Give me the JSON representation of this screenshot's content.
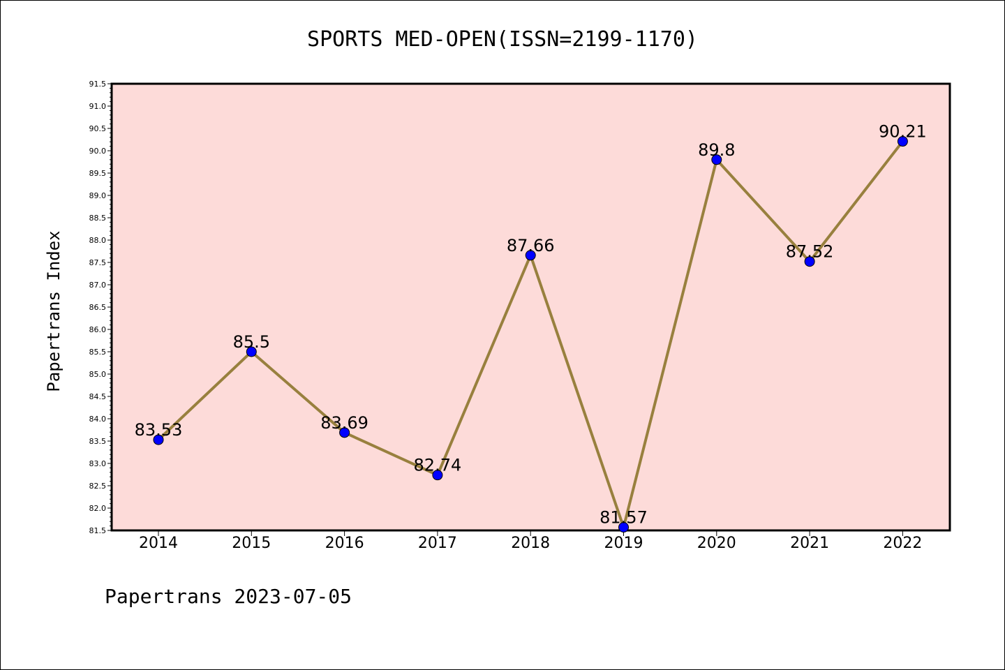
{
  "chart_data": {
    "type": "line",
    "title": "SPORTS MED-OPEN(ISSN=2199-1170)",
    "xlabel": "",
    "ylabel": "Papertrans Index",
    "categories": [
      "2014",
      "2015",
      "2016",
      "2017",
      "2018",
      "2019",
      "2020",
      "2021",
      "2022"
    ],
    "series": [
      {
        "values": [
          83.53,
          85.5,
          83.69,
          82.74,
          87.66,
          81.57,
          89.8,
          87.52,
          90.21
        ],
        "labels": [
          "83.53",
          "85.5",
          "83.69",
          "82.74",
          "87.66",
          "81.57",
          "89.8",
          "87.52",
          "90.21"
        ]
      }
    ],
    "ylim": [
      81.5,
      91.5
    ],
    "yticks": [
      "81.5",
      "82.0",
      "82.5",
      "83.0",
      "83.5",
      "84.0",
      "84.5",
      "85.0",
      "85.5",
      "86.0",
      "86.5",
      "87.0",
      "87.5",
      "88.0",
      "88.5",
      "89.0",
      "89.5",
      "90.0",
      "90.5",
      "91.0",
      "91.5"
    ],
    "grid": false,
    "legend": "none",
    "colors": {
      "plot_background": "#fddbd9",
      "line": "#98803e",
      "marker": "#0000ff"
    }
  },
  "footer": "Papertrans 2023-07-05"
}
